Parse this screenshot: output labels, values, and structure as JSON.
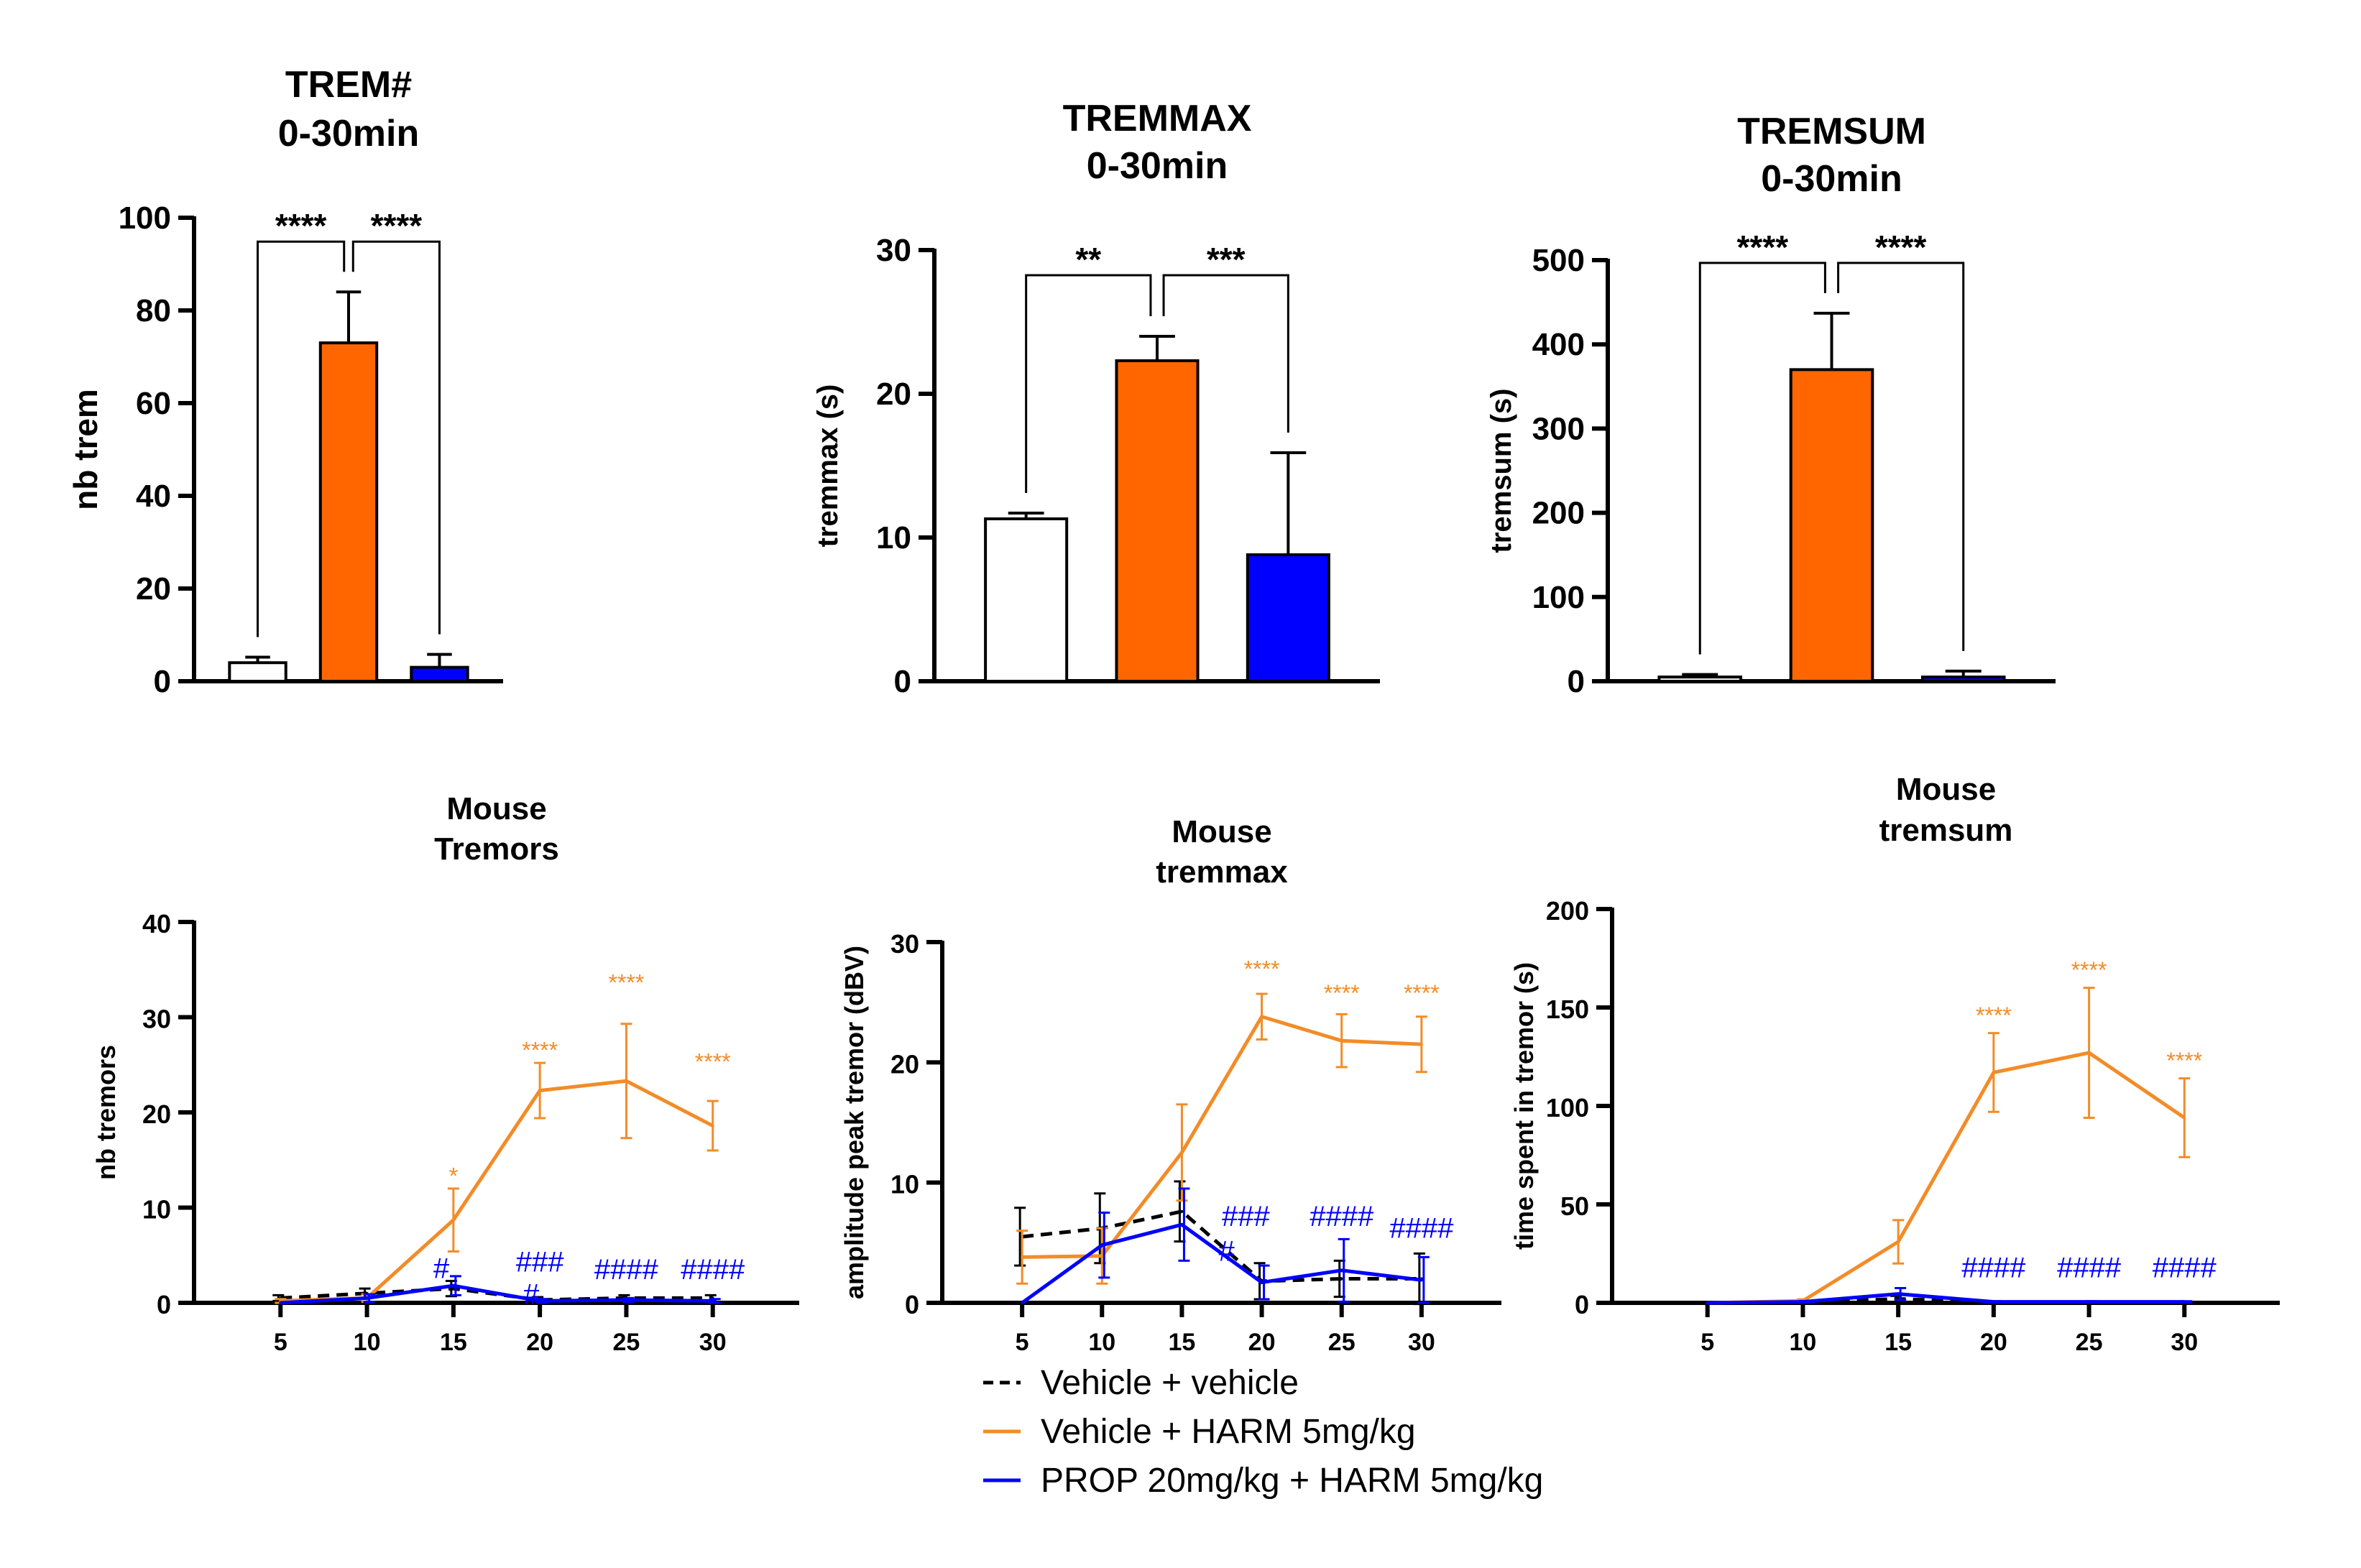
{
  "chart_data": [
    {
      "type": "bar",
      "title": "TREM#",
      "subtitle": "0-30min",
      "ylabel": "nb trem",
      "ylim": [
        0,
        100
      ],
      "yticks": [
        "0",
        "20",
        "40",
        "60",
        "80",
        "100"
      ],
      "categories": [
        "",
        "",
        ""
      ],
      "values": [
        4,
        73,
        3
      ],
      "errors": [
        1.2,
        11,
        2.8
      ],
      "colors": [
        "#ffffff",
        "#ff6600",
        "#0000ff"
      ],
      "significance": [
        {
          "from": 0,
          "to": 1,
          "label": "****"
        },
        {
          "from": 1,
          "to": 2,
          "label": "****"
        }
      ]
    },
    {
      "type": "bar",
      "title": "TREMMAX",
      "subtitle": "0-30min",
      "ylabel": "tremmax (s)",
      "ylim": [
        0,
        30
      ],
      "yticks": [
        "0",
        "10",
        "20",
        "30"
      ],
      "categories": [
        "",
        "",
        ""
      ],
      "values": [
        11.3,
        22.3,
        8.8
      ],
      "errors": [
        0.4,
        1.7,
        7.1
      ],
      "colors": [
        "#ffffff",
        "#ff6600",
        "#0000ff"
      ],
      "significance": [
        {
          "from": 0,
          "to": 1,
          "label": "**"
        },
        {
          "from": 1,
          "to": 2,
          "label": "***"
        }
      ]
    },
    {
      "type": "bar",
      "title": "TREMSUM",
      "subtitle": "0-30min",
      "ylabel": "tremsum (s)",
      "ylim": [
        0,
        500
      ],
      "yticks": [
        "0",
        "100",
        "200",
        "300",
        "400",
        "500"
      ],
      "categories": [
        "",
        "",
        ""
      ],
      "values": [
        5,
        370,
        5
      ],
      "errors": [
        3,
        67,
        7
      ],
      "colors": [
        "#ffffff",
        "#ff6600",
        "#0000ff"
      ],
      "significance": [
        {
          "from": 0,
          "to": 1,
          "label": "****"
        },
        {
          "from": 1,
          "to": 2,
          "label": "****"
        }
      ]
    },
    {
      "type": "line",
      "title": "Mouse",
      "subtitle": "Tremors",
      "ylabel": "nb tremors",
      "xlabel": "",
      "x": [
        5,
        10,
        15,
        20,
        25,
        30
      ],
      "xticks": [
        "5",
        "10",
        "15",
        "20",
        "25",
        "30"
      ],
      "xlim": [
        0,
        35
      ],
      "ylim": [
        0,
        40
      ],
      "yticks": [
        "0",
        "10",
        "20",
        "30",
        "40"
      ],
      "series": [
        {
          "name": "Vehicle + vehicle",
          "color": "#000000",
          "dash": true,
          "values": [
            0.5,
            1,
            1.5,
            0.3,
            0.5,
            0.5
          ],
          "errors": [
            0.3,
            0.5,
            0.8,
            0.3,
            0.3,
            0.3
          ]
        },
        {
          "name": "Vehicle + HARM 5mg/kg",
          "color": "#f28c28",
          "dash": false,
          "values": [
            0.2,
            0.5,
            8.7,
            22.3,
            23.3,
            18.6
          ],
          "errors": [
            0.2,
            0.4,
            3.3,
            2.9,
            6,
            2.6
          ]
        },
        {
          "name": "PROP 20mg/kg + HARM 5mg/kg",
          "color": "#0000ff",
          "dash": false,
          "values": [
            0,
            0.5,
            1.8,
            0.2,
            0.3,
            0.2
          ],
          "errors": [
            0,
            0.4,
            1,
            0.2,
            0.2,
            0.2
          ]
        }
      ],
      "annotations": [
        {
          "x": 15,
          "y": 12.5,
          "text": "*",
          "color": "#f28c28"
        },
        {
          "x": 20,
          "y": 25.7,
          "text": "****",
          "color": "#f28c28"
        },
        {
          "x": 25,
          "y": 32.8,
          "text": "****",
          "color": "#f28c28"
        },
        {
          "x": 30,
          "y": 24.5,
          "text": "****",
          "color": "#f28c28"
        },
        {
          "x": 14.3,
          "y": 2.6,
          "text": "#",
          "color": "#0000ff"
        },
        {
          "x": 20,
          "y": 3.3,
          "text": "###",
          "color": "#0000ff"
        },
        {
          "x": 19.5,
          "y": -0.1,
          "text": "#",
          "color": "#0000ff"
        },
        {
          "x": 25,
          "y": 2.5,
          "text": "####",
          "color": "#0000ff"
        },
        {
          "x": 30,
          "y": 2.5,
          "text": "####",
          "color": "#0000ff"
        }
      ]
    },
    {
      "type": "line",
      "title": "Mouse",
      "subtitle": "tremmax",
      "ylabel": "amplitude peak tremor (dBV)",
      "xlabel": "",
      "x": [
        5,
        10,
        15,
        20,
        25,
        30
      ],
      "xticks": [
        "5",
        "10",
        "15",
        "20",
        "25",
        "30"
      ],
      "xlim": [
        0,
        35
      ],
      "ylim": [
        0,
        30
      ],
      "yticks": [
        "0",
        "10",
        "20",
        "30"
      ],
      "series": [
        {
          "name": "Vehicle + vehicle",
          "color": "#000000",
          "dash": true,
          "values": [
            5.5,
            6.2,
            7.6,
            1.8,
            2,
            2
          ],
          "errors": [
            2.4,
            2.9,
            2.5,
            1.5,
            1.5,
            2.1
          ]
        },
        {
          "name": "Vehicle + HARM 5mg/kg",
          "color": "#f28c28",
          "dash": false,
          "values": [
            3.8,
            3.9,
            12.5,
            23.8,
            21.8,
            21.5
          ],
          "errors": [
            2.2,
            2.3,
            4,
            1.9,
            2.2,
            2.3
          ]
        },
        {
          "name": "PROP 20mg/kg + HARM 5mg/kg",
          "color": "#0000ff",
          "dash": false,
          "values": [
            0,
            4.8,
            6.5,
            1.7,
            2.7,
            1.9
          ],
          "errors": [
            0,
            2.7,
            3,
            1.4,
            2.6,
            1.9
          ]
        }
      ],
      "annotations": [
        {
          "x": 20,
          "y": 27.1,
          "text": "****",
          "color": "#f28c28"
        },
        {
          "x": 25,
          "y": 25.1,
          "text": "****",
          "color": "#f28c28"
        },
        {
          "x": 30,
          "y": 25.1,
          "text": "****",
          "color": "#f28c28"
        },
        {
          "x": 19,
          "y": 6.4,
          "text": "###",
          "color": "#0000ff"
        },
        {
          "x": 17.8,
          "y": 3.5,
          "text": "#",
          "color": "#0000ff"
        },
        {
          "x": 25,
          "y": 6.4,
          "text": "####",
          "color": "#0000ff"
        },
        {
          "x": 30,
          "y": 5.4,
          "text": "####",
          "color": "#0000ff"
        }
      ]
    },
    {
      "type": "line",
      "title": "Mouse",
      "subtitle": "tremsum",
      "ylabel": "time spent in tremor (s)",
      "xlabel": "",
      "x": [
        5,
        10,
        15,
        20,
        25,
        30
      ],
      "xticks": [
        "5",
        "10",
        "15",
        "20",
        "25",
        "30"
      ],
      "xlim": [
        0,
        35
      ],
      "ylim": [
        0,
        200
      ],
      "yticks": [
        "0",
        "50",
        "100",
        "150",
        "200"
      ],
      "series": [
        {
          "name": "Vehicle + vehicle",
          "color": "#000000",
          "dash": true,
          "values": [
            0,
            0.5,
            2,
            0.3,
            0.3,
            0.3
          ],
          "errors": [
            0,
            0.4,
            1.5,
            0.2,
            0.2,
            0.2
          ]
        },
        {
          "name": "Vehicle + HARM 5mg/kg",
          "color": "#f28c28",
          "dash": false,
          "values": [
            0,
            1,
            31,
            117,
            127,
            94
          ],
          "errors": [
            0,
            0.8,
            11,
            20,
            33,
            20
          ]
        },
        {
          "name": "PROP 20mg/kg + HARM 5mg/kg",
          "color": "#0000ff",
          "dash": false,
          "values": [
            0,
            0.5,
            4.5,
            0.5,
            0.5,
            0.5
          ],
          "errors": [
            0,
            0.4,
            3,
            0.3,
            0.3,
            0.3
          ]
        }
      ],
      "annotations": [
        {
          "x": 20,
          "y": 142,
          "text": "****",
          "color": "#f28c28"
        },
        {
          "x": 25,
          "y": 165,
          "text": "****",
          "color": "#f28c28"
        },
        {
          "x": 30,
          "y": 119,
          "text": "****",
          "color": "#f28c28"
        },
        {
          "x": 20,
          "y": 13,
          "text": "####",
          "color": "#0000ff"
        },
        {
          "x": 25,
          "y": 13,
          "text": "####",
          "color": "#0000ff"
        },
        {
          "x": 30,
          "y": 13,
          "text": "####",
          "color": "#0000ff"
        }
      ]
    }
  ],
  "legend": {
    "placement": "bottom-center",
    "items": [
      {
        "label": "Vehicle + vehicle",
        "color": "#000000",
        "dash": true
      },
      {
        "label": "Vehicle + HARM 5mg/kg",
        "color": "#f28c28",
        "dash": false
      },
      {
        "label": "PROP 20mg/kg + HARM 5mg/kg",
        "color": "#0000ff",
        "dash": false
      }
    ]
  }
}
